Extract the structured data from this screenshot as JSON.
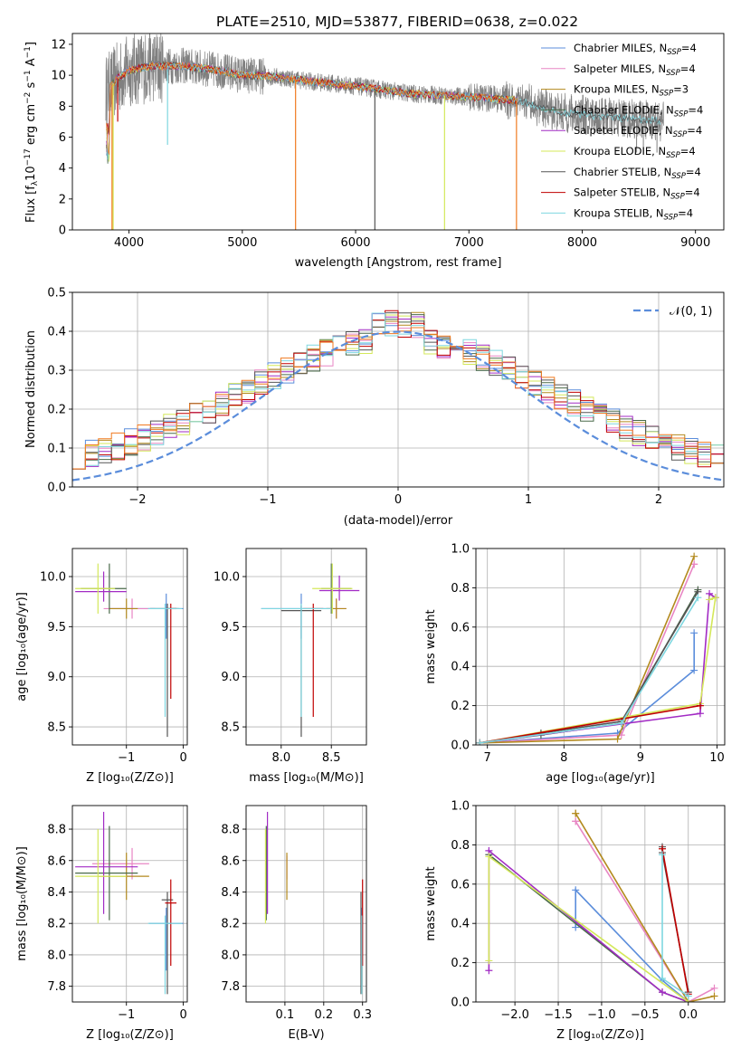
{
  "title": "PLATE=2510, MJD=53877, FIBERID=0638, z=0.022",
  "colors": {
    "Chabrier MILES": "#5b8ddb",
    "Salpeter MILES": "#e886c4",
    "Kroupa MILES": "#b38a1e",
    "Chabrier ELODIE": "#4a6a4a",
    "Salpeter ELODIE": "#a22bc4",
    "Kroupa ELODIE": "#d4e85a",
    "Chabrier STELIB": "#555555",
    "Salpeter STELIB": "#c00000",
    "Kroupa STELIB": "#7fd7e0",
    "orange": "#f07a20",
    "data": "#808080",
    "normal": "#5b8ddb"
  },
  "legend": [
    {
      "name": "Chabrier MILES, N",
      "sub": "SSP",
      "suffix": "=4",
      "key": "Chabrier MILES"
    },
    {
      "name": "Salpeter MILES, N",
      "sub": "SSP",
      "suffix": "=4",
      "key": "Salpeter MILES"
    },
    {
      "name": "Kroupa MILES, N",
      "sub": "SSP",
      "suffix": "=3",
      "key": "Kroupa MILES"
    },
    {
      "name": "Chabrier ELODIE, N",
      "sub": "SSP",
      "suffix": "=4",
      "key": "Chabrier ELODIE"
    },
    {
      "name": "Salpeter ELODIE, N",
      "sub": "SSP",
      "suffix": "=4",
      "key": "Salpeter ELODIE"
    },
    {
      "name": "Kroupa ELODIE, N",
      "sub": "SSP",
      "suffix": "=4",
      "key": "Kroupa ELODIE"
    },
    {
      "name": "Chabrier STELIB, N",
      "sub": "SSP",
      "suffix": "=4",
      "key": "Chabrier STELIB"
    },
    {
      "name": "Salpeter STELIB, N",
      "sub": "SSP",
      "suffix": "=4",
      "key": "Salpeter STELIB"
    },
    {
      "name": "Kroupa STELIB, N",
      "sub": "SSP",
      "suffix": "=4",
      "key": "Kroupa STELIB"
    }
  ],
  "chart_data": [
    {
      "id": "spectrum",
      "type": "line",
      "xlabel": "wavelength [Angstrom, rest frame]",
      "ylabel": "Flux [fλ10⁻¹⁷ erg cm⁻² s⁻¹ A⁻¹]",
      "xlim": [
        3500,
        9250
      ],
      "ylim": [
        0,
        12.7
      ],
      "xticks": [
        4000,
        5000,
        6000,
        7000,
        8000,
        9000
      ],
      "yticks": [
        0,
        2,
        4,
        6,
        8,
        10,
        12
      ],
      "continuum": [
        [
          3800,
          9.0
        ],
        [
          3900,
          9.8
        ],
        [
          4000,
          10.3
        ],
        [
          4200,
          10.6
        ],
        [
          4500,
          10.6
        ],
        [
          4800,
          10.3
        ],
        [
          5000,
          10.0
        ],
        [
          5300,
          9.9
        ],
        [
          5600,
          9.6
        ],
        [
          6000,
          9.3
        ],
        [
          6500,
          8.8
        ],
        [
          7000,
          8.6
        ],
        [
          7400,
          8.4
        ],
        [
          7800,
          7.6
        ],
        [
          8200,
          7.3
        ],
        [
          8600,
          7.1
        ],
        [
          8700,
          7.0
        ]
      ],
      "grid": false,
      "legend_position": "upper-right"
    },
    {
      "id": "residuals",
      "type": "histogram",
      "xlabel": "(data-model)/error",
      "ylabel": "Normed distribution",
      "xlim": [
        -2.5,
        2.5
      ],
      "ylim": [
        0,
        0.5
      ],
      "xticks": [
        -2,
        -1,
        0,
        1,
        2
      ],
      "yticks": [
        0.0,
        0.1,
        0.2,
        0.3,
        0.4,
        0.5
      ],
      "bin_width": 0.1,
      "reference_curve": {
        "name": "𝒩(0, 1)",
        "style": "dashed"
      },
      "grid": true,
      "legend_position": "upper-right"
    },
    {
      "id": "age_vs_Z",
      "type": "scatter",
      "xlabel": "Z [log₁₀(Z/Z⊙)]",
      "ylabel": "age  [log₁₀(age/yr)]",
      "xlim": [
        -1.95,
        0.07
      ],
      "ylim": [
        8.32,
        10.28
      ],
      "xticks": [
        -1,
        0
      ],
      "yticks": [
        8.5,
        9.0,
        9.5,
        10.0
      ],
      "grid": true,
      "points": [
        {
          "key": "Chabrier MILES",
          "x": -0.3,
          "y": 9.68,
          "xerr": [
            1.0,
            0.3
          ],
          "yerr": [
            0.3,
            0.15
          ]
        },
        {
          "key": "Salpeter MILES",
          "x": -0.9,
          "y": 9.68,
          "xerr": [
            0.5,
            0.4
          ],
          "yerr": [
            0.1,
            0.1
          ]
        },
        {
          "key": "Kroupa MILES",
          "x": -1.0,
          "y": 9.68,
          "xerr": [
            0.3,
            0.2
          ],
          "yerr": [
            0.1,
            0.1
          ]
        },
        {
          "key": "Chabrier ELODIE",
          "x": -1.3,
          "y": 9.88,
          "xerr": [
            0.5,
            0.3
          ],
          "yerr": [
            0.25,
            0.25
          ]
        },
        {
          "key": "Salpeter ELODIE",
          "x": -1.4,
          "y": 9.85,
          "xerr": [
            0.5,
            0.4
          ],
          "yerr": [
            0.1,
            0.2
          ]
        },
        {
          "key": "Kroupa ELODIE",
          "x": -1.5,
          "y": 9.88,
          "xerr": [
            0.4,
            0.3
          ],
          "yerr": [
            0.25,
            0.25
          ]
        },
        {
          "key": "Chabrier STELIB",
          "x": -0.28,
          "y": 9.68,
          "xerr": [
            0.3,
            0.2
          ],
          "yerr": [
            1.28,
            0.05
          ]
        },
        {
          "key": "Salpeter STELIB",
          "x": -0.22,
          "y": 9.68,
          "xerr": [
            0.1,
            0.1
          ],
          "yerr": [
            0.9,
            0.05
          ]
        },
        {
          "key": "Kroupa STELIB",
          "x": -0.32,
          "y": 9.68,
          "xerr": [
            0.3,
            0.3
          ],
          "yerr": [
            1.08,
            0.05
          ]
        }
      ]
    },
    {
      "id": "age_vs_mass",
      "type": "scatter",
      "xlabel": "mass [log₁₀(M/M⊙)]",
      "ylabel": "",
      "xlim": [
        7.65,
        8.85
      ],
      "ylim": [
        8.32,
        10.28
      ],
      "xticks": [
        8.0,
        8.5
      ],
      "yticks": [
        8.5,
        9.0,
        9.5,
        10.0
      ],
      "grid": true,
      "points": [
        {
          "key": "Chabrier MILES",
          "x": 8.2,
          "y": 9.68,
          "xerr": [
            0.4,
            0.3
          ],
          "yerr": [
            0.3,
            0.15
          ]
        },
        {
          "key": "Salpeter MILES",
          "x": 8.55,
          "y": 9.68,
          "xerr": [
            0.1,
            0.1
          ],
          "yerr": [
            0.1,
            0.1
          ]
        },
        {
          "key": "Kroupa MILES",
          "x": 8.55,
          "y": 9.68,
          "xerr": [
            0.1,
            0.1
          ],
          "yerr": [
            0.1,
            0.1
          ]
        },
        {
          "key": "Chabrier ELODIE",
          "x": 8.5,
          "y": 9.88,
          "xerr": [
            0.1,
            0.2
          ],
          "yerr": [
            0.25,
            0.25
          ]
        },
        {
          "key": "Salpeter ELODIE",
          "x": 8.58,
          "y": 9.86,
          "xerr": [
            0.2,
            0.2
          ],
          "yerr": [
            0.1,
            0.15
          ]
        },
        {
          "key": "Kroupa ELODIE",
          "x": 8.51,
          "y": 9.88,
          "xerr": [
            0.2,
            0.2
          ],
          "yerr": [
            0.25,
            0.25
          ]
        },
        {
          "key": "Chabrier STELIB",
          "x": 8.2,
          "y": 9.66,
          "xerr": [
            0.2,
            0.2
          ],
          "yerr": [
            1.26,
            0.05
          ]
        },
        {
          "key": "Salpeter STELIB",
          "x": 8.32,
          "y": 9.68,
          "xerr": [
            0.1,
            0.1
          ],
          "yerr": [
            1.08,
            0.05
          ]
        },
        {
          "key": "Kroupa STELIB",
          "x": 8.2,
          "y": 9.68,
          "xerr": [
            0.4,
            0.3
          ],
          "yerr": [
            1.08,
            0.05
          ]
        }
      ]
    },
    {
      "id": "weight_vs_age",
      "type": "line",
      "xlabel": "age  [log₁₀(age/yr)]",
      "ylabel": "mass weight",
      "xlim": [
        6.85,
        10.1
      ],
      "ylim": [
        0,
        1.0
      ],
      "xticks": [
        7,
        8,
        9,
        10
      ],
      "yticks": [
        0.0,
        0.2,
        0.4,
        0.6,
        0.8,
        1.0
      ],
      "grid": true,
      "series": [
        {
          "key": "Chabrier MILES",
          "x": [
            6.9,
            8.7,
            9.7,
            9.7
          ],
          "y": [
            0.01,
            0.06,
            0.38,
            0.57
          ]
        },
        {
          "key": "Salpeter MILES",
          "x": [
            6.9,
            8.75,
            9.7,
            9.7
          ],
          "y": [
            0.01,
            0.05,
            0.92,
            0.92
          ]
        },
        {
          "key": "Kroupa MILES",
          "x": [
            6.9,
            8.7,
            9.7
          ],
          "y": [
            0.01,
            0.03,
            0.96
          ]
        },
        {
          "key": "Chabrier ELODIE",
          "x": [
            6.9,
            7.7,
            8.75,
            9.75
          ],
          "y": [
            0.01,
            0.05,
            0.11,
            0.79
          ]
        },
        {
          "key": "Salpeter ELODIE",
          "x": [
            6.9,
            9.78,
            9.9,
            9.98
          ],
          "y": [
            0.01,
            0.16,
            0.77,
            0.75
          ]
        },
        {
          "key": "Kroupa ELODIE",
          "x": [
            6.9,
            9.78,
            9.98,
            9.9
          ],
          "y": [
            0.01,
            0.21,
            0.75,
            0.74
          ]
        },
        {
          "key": "Chabrier STELIB",
          "x": [
            6.9,
            7.7,
            8.75,
            9.75
          ],
          "y": [
            0.01,
            0.06,
            0.12,
            0.78
          ]
        },
        {
          "key": "Salpeter STELIB",
          "x": [
            6.9,
            9.78
          ],
          "y": [
            0.01,
            0.2
          ]
        },
        {
          "key": "Kroupa STELIB",
          "x": [
            6.9,
            8.75,
            9.75
          ],
          "y": [
            0.01,
            0.11,
            0.75
          ]
        }
      ]
    },
    {
      "id": "mass_vs_Z",
      "type": "scatter",
      "xlabel": "Z [log₁₀(Z/Z⊙)]",
      "ylabel": "mass [log₁₀(M/M⊙)]",
      "xlim": [
        -1.95,
        0.07
      ],
      "ylim": [
        7.7,
        8.95
      ],
      "xticks": [
        -1,
        0
      ],
      "yticks": [
        7.8,
        8.0,
        8.2,
        8.4,
        8.6,
        8.8
      ],
      "grid": true,
      "points": [
        {
          "key": "Chabrier MILES",
          "x": -0.3,
          "y": 8.2,
          "xerr": [
            0.3,
            0.3
          ],
          "yerr": [
            0.3,
            0.1
          ]
        },
        {
          "key": "Salpeter MILES",
          "x": -0.9,
          "y": 8.58,
          "xerr": [
            0.7,
            0.3
          ],
          "yerr": [
            0.1,
            0.1
          ]
        },
        {
          "key": "Kroupa MILES",
          "x": -1.0,
          "y": 8.5,
          "xerr": [
            0.5,
            0.4
          ],
          "yerr": [
            0.15,
            0.15
          ]
        },
        {
          "key": "Chabrier ELODIE",
          "x": -1.3,
          "y": 8.52,
          "xerr": [
            0.6,
            0.5
          ],
          "yerr": [
            0.3,
            0.3
          ]
        },
        {
          "key": "Salpeter ELODIE",
          "x": -1.4,
          "y": 8.56,
          "xerr": [
            0.5,
            0.6
          ],
          "yerr": [
            0.3,
            0.35
          ]
        },
        {
          "key": "Kroupa ELODIE",
          "x": -1.5,
          "y": 8.5,
          "xerr": [
            0.4,
            0.5
          ],
          "yerr": [
            0.3,
            0.3
          ]
        },
        {
          "key": "Chabrier STELIB",
          "x": -0.28,
          "y": 8.35,
          "xerr": [
            0.1,
            0.1
          ],
          "yerr": [
            0.6,
            0.05
          ]
        },
        {
          "key": "Salpeter STELIB",
          "x": -0.22,
          "y": 8.33,
          "xerr": [
            0.1,
            0.1
          ],
          "yerr": [
            0.4,
            0.15
          ]
        },
        {
          "key": "Kroupa STELIB",
          "x": -0.32,
          "y": 8.2,
          "xerr": [
            0.3,
            0.3
          ],
          "yerr": [
            0.45,
            0.05
          ]
        }
      ]
    },
    {
      "id": "mass_vs_ebv",
      "type": "scatter",
      "xlabel": "E(B-V)",
      "ylabel": "",
      "xlim": [
        0.0,
        0.31
      ],
      "ylim": [
        7.7,
        8.95
      ],
      "xticks": [
        0.1,
        0.2,
        0.3
      ],
      "yticks": [
        7.8,
        8.0,
        8.2,
        8.4,
        8.6,
        8.8
      ],
      "grid": true,
      "points": [
        {
          "key": "Chabrier MILES",
          "x": 0.297,
          "y": 8.2,
          "xerr": [
            0.0,
            0.0
          ],
          "yerr": [
            0.3,
            0.1
          ]
        },
        {
          "key": "Salpeter MILES",
          "x": 0.105,
          "y": 8.58,
          "xerr": [
            0.0,
            0.0
          ],
          "yerr": [
            0.1,
            0.05
          ]
        },
        {
          "key": "Kroupa MILES",
          "x": 0.105,
          "y": 8.5,
          "xerr": [
            0.0,
            0.0
          ],
          "yerr": [
            0.15,
            0.15
          ]
        },
        {
          "key": "Chabrier ELODIE",
          "x": 0.052,
          "y": 8.52,
          "xerr": [
            0.0,
            0.0
          ],
          "yerr": [
            0.3,
            0.3
          ]
        },
        {
          "key": "Salpeter ELODIE",
          "x": 0.055,
          "y": 8.56,
          "xerr": [
            0.0,
            0.0
          ],
          "yerr": [
            0.3,
            0.35
          ]
        },
        {
          "key": "Kroupa ELODIE",
          "x": 0.05,
          "y": 8.5,
          "xerr": [
            0.0,
            0.0
          ],
          "yerr": [
            0.3,
            0.3
          ]
        },
        {
          "key": "Chabrier STELIB",
          "x": 0.296,
          "y": 8.35,
          "xerr": [
            0.0,
            0.0
          ],
          "yerr": [
            0.6,
            0.05
          ]
        },
        {
          "key": "Salpeter STELIB",
          "x": 0.3,
          "y": 8.33,
          "xerr": [
            0.0,
            0.0
          ],
          "yerr": [
            0.4,
            0.15
          ]
        },
        {
          "key": "Kroupa STELIB",
          "x": 0.298,
          "y": 8.2,
          "xerr": [
            0.0,
            0.0
          ],
          "yerr": [
            0.45,
            0.05
          ]
        }
      ]
    },
    {
      "id": "weight_vs_Z",
      "type": "line",
      "xlabel": "Z [log₁₀(Z/Z⊙)]",
      "ylabel": "mass weight",
      "xlim": [
        -2.45,
        0.42
      ],
      "ylim": [
        0,
        1.0
      ],
      "xticks": [
        -2.0,
        -1.5,
        -1.0,
        -0.5,
        0.0
      ],
      "yticks": [
        0.0,
        0.2,
        0.4,
        0.6,
        0.8,
        1.0
      ],
      "grid": true,
      "series": [
        {
          "key": "Chabrier MILES",
          "x": [
            -1.3,
            -1.3,
            -0.3,
            0.0
          ],
          "y": [
            0.38,
            0.57,
            0.11,
            0.0
          ]
        },
        {
          "key": "Salpeter MILES",
          "x": [
            -1.3,
            -1.3,
            0.0,
            0.3
          ],
          "y": [
            0.92,
            0.92,
            0.0,
            0.07
          ]
        },
        {
          "key": "Kroupa MILES",
          "x": [
            -1.3,
            -1.3,
            0.0,
            0.3
          ],
          "y": [
            0.96,
            0.96,
            0.0,
            0.03
          ]
        },
        {
          "key": "Chabrier ELODIE",
          "x": [
            -2.3,
            -0.3,
            0.0
          ],
          "y": [
            0.75,
            0.05,
            0.0
          ]
        },
        {
          "key": "Salpeter ELODIE",
          "x": [
            -2.3,
            -2.3,
            -0.3,
            0.0
          ],
          "y": [
            0.16,
            0.77,
            0.05,
            0.0
          ]
        },
        {
          "key": "Kroupa ELODIE",
          "x": [
            -2.3,
            -2.3,
            0.0
          ],
          "y": [
            0.21,
            0.74,
            0.0
          ]
        },
        {
          "key": "Chabrier STELIB",
          "x": [
            -0.3,
            -0.3,
            0.0
          ],
          "y": [
            0.79,
            0.76,
            0.05
          ]
        },
        {
          "key": "Salpeter STELIB",
          "x": [
            -0.3,
            0.0
          ],
          "y": [
            0.78,
            0.04
          ]
        },
        {
          "key": "Kroupa STELIB",
          "x": [
            -0.3,
            -0.3,
            0.0
          ],
          "y": [
            0.75,
            0.12,
            0.03
          ]
        }
      ]
    }
  ]
}
